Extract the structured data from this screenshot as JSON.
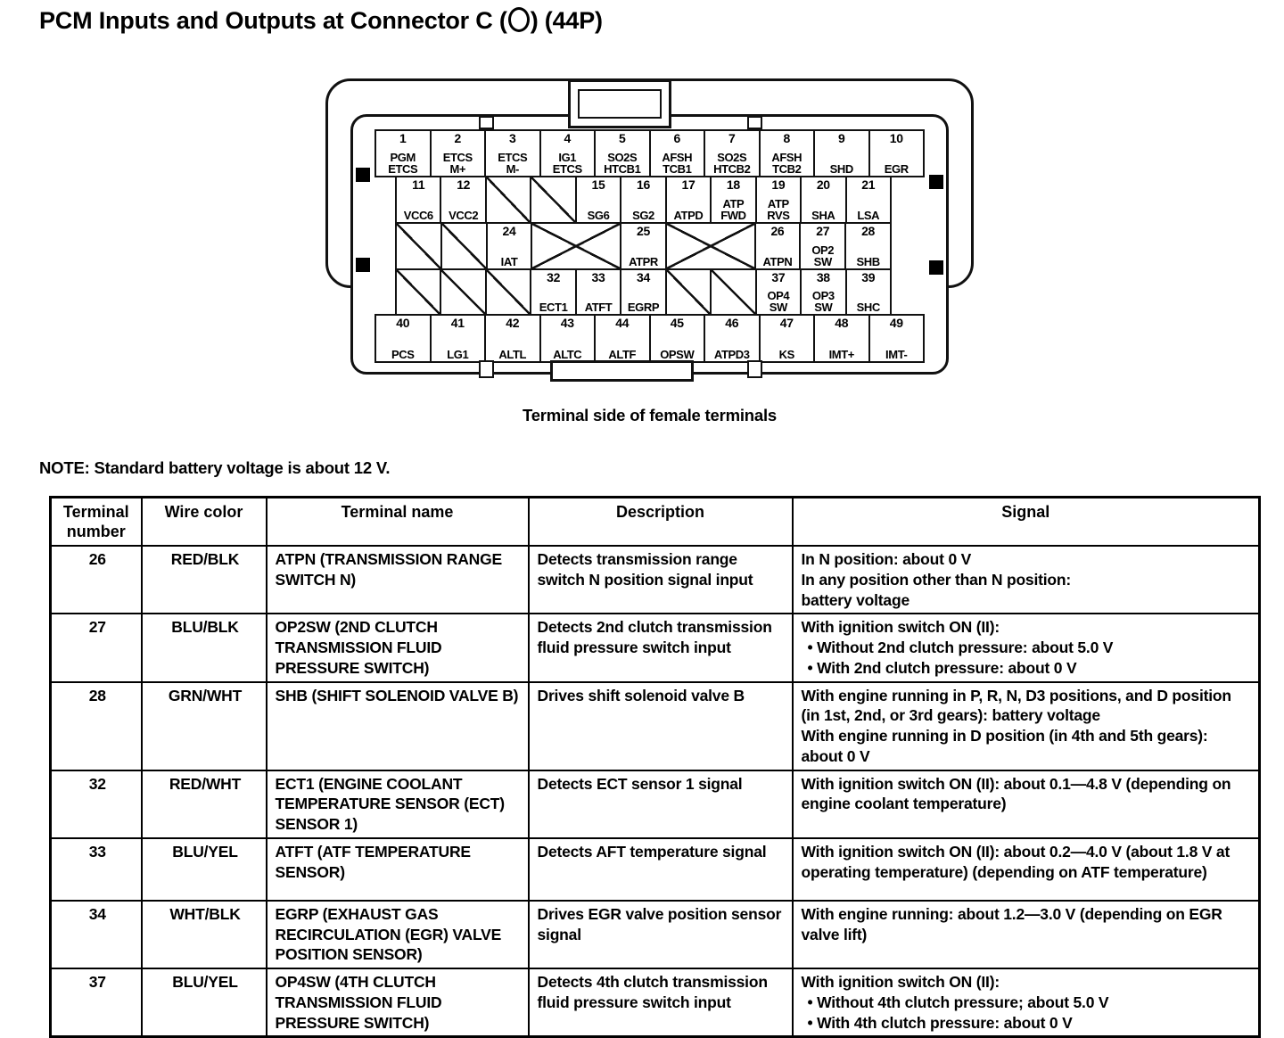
{
  "page": {
    "title_prefix": "PCM Inputs and Outputs at Connector C (",
    "title_suffix": ") (44P)",
    "note": "NOTE: Standard battery voltage is about 12 V."
  },
  "connector": {
    "caption": "Terminal side of female terminals",
    "rows": [
      {
        "cells": [
          {
            "type": "pin",
            "num": "1",
            "name": "PGM\nETCS"
          },
          {
            "type": "pin",
            "num": "2",
            "name": "ETCS\nM+"
          },
          {
            "type": "pin",
            "num": "3",
            "name": "ETCS\nM-"
          },
          {
            "type": "pin",
            "num": "4",
            "name": "IG1\nETCS"
          },
          {
            "type": "pin",
            "num": "5",
            "name": "SO2S\nHTCB1"
          },
          {
            "type": "pin",
            "num": "6",
            "name": "AFSH\nTCB1"
          },
          {
            "type": "pin",
            "num": "7",
            "name": "SO2S\nHTCB2"
          },
          {
            "type": "pin",
            "num": "8",
            "name": "AFSH\nTCB2"
          },
          {
            "type": "pin",
            "num": "9",
            "name": "SHD"
          },
          {
            "type": "pin",
            "num": "10",
            "name": "EGR"
          }
        ]
      },
      {
        "cells": [
          {
            "type": "pin",
            "num": "11",
            "name": "VCC6"
          },
          {
            "type": "pin",
            "num": "12",
            "name": "VCC2"
          },
          {
            "type": "hatch"
          },
          {
            "type": "hatch"
          },
          {
            "type": "pin",
            "num": "15",
            "name": "SG6"
          },
          {
            "type": "pin",
            "num": "16",
            "name": "SG2"
          },
          {
            "type": "pin",
            "num": "17",
            "name": "ATPD"
          },
          {
            "type": "pin",
            "num": "18",
            "name": "ATP\nFWD"
          },
          {
            "type": "pin",
            "num": "19",
            "name": "ATP\nRVS"
          },
          {
            "type": "pin",
            "num": "20",
            "name": "SHA"
          },
          {
            "type": "pin",
            "num": "21",
            "name": "LSA"
          }
        ]
      },
      {
        "cells": [
          {
            "type": "hatch"
          },
          {
            "type": "hatch"
          },
          {
            "type": "pin",
            "num": "24",
            "name": "IAT"
          },
          {
            "type": "cross",
            "span": 2
          },
          {
            "type": "pin",
            "num": "25",
            "name": "ATPR"
          },
          {
            "type": "cross",
            "span": 2
          },
          {
            "type": "pin",
            "num": "26",
            "name": "ATPN"
          },
          {
            "type": "pin",
            "num": "27",
            "name": "OP2\nSW"
          },
          {
            "type": "pin",
            "num": "28",
            "name": "SHB"
          }
        ]
      },
      {
        "cells": [
          {
            "type": "hatch"
          },
          {
            "type": "hatch"
          },
          {
            "type": "hatch"
          },
          {
            "type": "pin",
            "num": "32",
            "name": "ECT1"
          },
          {
            "type": "pin",
            "num": "33",
            "name": "ATFT"
          },
          {
            "type": "pin",
            "num": "34",
            "name": "EGRP"
          },
          {
            "type": "hatch"
          },
          {
            "type": "hatch"
          },
          {
            "type": "pin",
            "num": "37",
            "name": "OP4\nSW"
          },
          {
            "type": "pin",
            "num": "38",
            "name": "OP3\nSW"
          },
          {
            "type": "pin",
            "num": "39",
            "name": "SHC"
          }
        ]
      },
      {
        "cells": [
          {
            "type": "pin",
            "num": "40",
            "name": "PCS"
          },
          {
            "type": "pin",
            "num": "41",
            "name": "LG1"
          },
          {
            "type": "pin",
            "num": "42",
            "name": "ALTL"
          },
          {
            "type": "pin",
            "num": "43",
            "name": "ALTC"
          },
          {
            "type": "pin",
            "num": "44",
            "name": "ALTF"
          },
          {
            "type": "pin",
            "num": "45",
            "name": "OPSW"
          },
          {
            "type": "pin",
            "num": "46",
            "name": "ATPD3"
          },
          {
            "type": "pin",
            "num": "47",
            "name": "KS"
          },
          {
            "type": "pin",
            "num": "48",
            "name": "IMT+"
          },
          {
            "type": "pin",
            "num": "49",
            "name": "IMT-"
          }
        ]
      }
    ]
  },
  "table": {
    "headers": [
      "Terminal number",
      "Wire color",
      "Terminal name",
      "Description",
      "Signal"
    ],
    "rows": [
      {
        "terminal": "26",
        "wire_color": "RED/BLK",
        "terminal_name": "ATPN (TRANSMISSION RANGE SWITCH N)",
        "description": "Detects transmission range switch N position signal input",
        "signal_lines": [
          "In N position: about 0 V",
          "In any position other than N position:",
          "battery voltage"
        ]
      },
      {
        "terminal": "27",
        "wire_color": "BLU/BLK",
        "terminal_name": "OP2SW (2ND CLUTCH TRANSMISSION FLUID PRESSURE SWITCH)",
        "description": "Detects 2nd clutch transmission fluid pressure switch input",
        "signal_lines": [
          "With ignition switch ON (II):",
          "• Without 2nd clutch pressure: about 5.0 V",
          "• With 2nd clutch pressure: about 0 V"
        ]
      },
      {
        "terminal": "28",
        "wire_color": "GRN/WHT",
        "terminal_name": "SHB (SHIFT SOLENOID VALVE B)",
        "description": "Drives shift solenoid valve B",
        "signal_lines": [
          "With engine running in P, R, N, D3 positions, and D position (in 1st, 2nd, or 3rd gears): battery voltage",
          "With engine running in D position (in 4th and 5th gears): about 0 V"
        ]
      },
      {
        "terminal": "32",
        "wire_color": "RED/WHT",
        "terminal_name": "ECT1 (ENGINE COOLANT TEMPERATURE SENSOR (ECT) SENSOR 1)",
        "description": "Detects ECT sensor 1 signal",
        "signal_lines": [
          "With ignition switch ON (II): about 0.1—4.8 V (depending on engine coolant temperature)"
        ]
      },
      {
        "terminal": "33",
        "wire_color": "BLU/YEL",
        "terminal_name": "ATFT (ATF TEMPERATURE SENSOR)",
        "description": "Detects AFT temperature signal",
        "signal_lines": [
          "With ignition switch ON (II): about 0.2—4.0 V (about 1.8 V at operating temperature) (depending on ATF temperature)"
        ]
      },
      {
        "terminal": "34",
        "wire_color": "WHT/BLK",
        "terminal_name": "EGRP (EXHAUST GAS RECIRCULATION (EGR) VALVE POSITION SENSOR)",
        "description": "Drives EGR valve position sensor signal",
        "signal_lines": [
          "With engine running: about 1.2—3.0 V (depending on EGR valve lift)"
        ]
      },
      {
        "terminal": "37",
        "wire_color": "BLU/YEL",
        "terminal_name": "OP4SW (4TH CLUTCH TRANSMISSION FLUID PRESSURE SWITCH)",
        "description": "Detects 4th clutch transmission fluid pressure switch input",
        "signal_lines": [
          "With ignition switch ON (II):",
          "• Without 4th clutch pressure; about 5.0 V",
          "• With 4th clutch pressure: about 0 V"
        ]
      }
    ]
  }
}
